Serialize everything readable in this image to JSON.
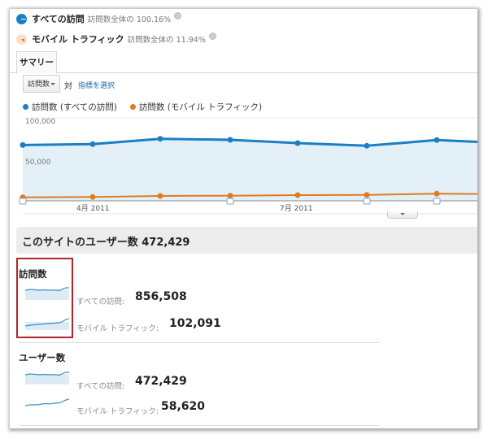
{
  "segments": [
    {
      "name": "すべての訪問",
      "pct_label": "訪問数全体の 100.16%",
      "icon": "segment-bullet-blue",
      "color": "#1a7fc4"
    },
    {
      "name": "モバイル トラフィック",
      "pct_label": "訪問数全体の 11.94%",
      "icon": "segment-bullet-orange",
      "color": "#e07b22"
    }
  ],
  "tabs": [
    {
      "label": "サマリー",
      "active": true
    }
  ],
  "controls": {
    "metric_select": "訪問数",
    "versus": "対",
    "select_metric_link": "指標を選択"
  },
  "legend": [
    {
      "label": "訪問数 (すべての訪問)",
      "color": "#1a7fc4"
    },
    {
      "label": "訪問数 (モバイル トラフィック)",
      "color": "#e07b22"
    }
  ],
  "chart_data": {
    "type": "line",
    "title": "",
    "xlabel": "",
    "ylabel": "訪問数",
    "ylim": [
      0,
      100000
    ],
    "y_ticks": [
      "100,000",
      "50,000"
    ],
    "x_tick_labels": [
      "4月 2011",
      "7月 2011"
    ],
    "grid": true,
    "legend_position": "top",
    "x": [
      "2011-03",
      "2011-04",
      "2011-05",
      "2011-06",
      "2011-07",
      "2011-08",
      "2011-09",
      "2011-10"
    ],
    "series": [
      {
        "name": "訪問数 (すべての訪問)",
        "color": "#1a7fc4",
        "area": true,
        "values": [
          67300,
          68300,
          74800,
          73500,
          69600,
          66400,
          73200,
          70900
        ]
      },
      {
        "name": "訪問数 (モバイル トラフィック)",
        "color": "#e07b22",
        "area": false,
        "values": [
          4200,
          4600,
          5900,
          6200,
          6900,
          7200,
          8500,
          8100
        ]
      }
    ]
  },
  "users_banner": "このサイトのユーザー数 472,429",
  "metrics": [
    {
      "title": "訪問数",
      "rows": [
        {
          "label": "すべての訪問:",
          "value": "856,508"
        },
        {
          "label": "モバイル トラフィック:",
          "value": "102,091"
        }
      ]
    },
    {
      "title": "ユーザー数",
      "rows": [
        {
          "label": "すべての訪問:",
          "value": "472,429"
        },
        {
          "label": "モバイル トラフィック:",
          "value": "58,620"
        }
      ]
    }
  ],
  "highlight_color": "#b2232a"
}
